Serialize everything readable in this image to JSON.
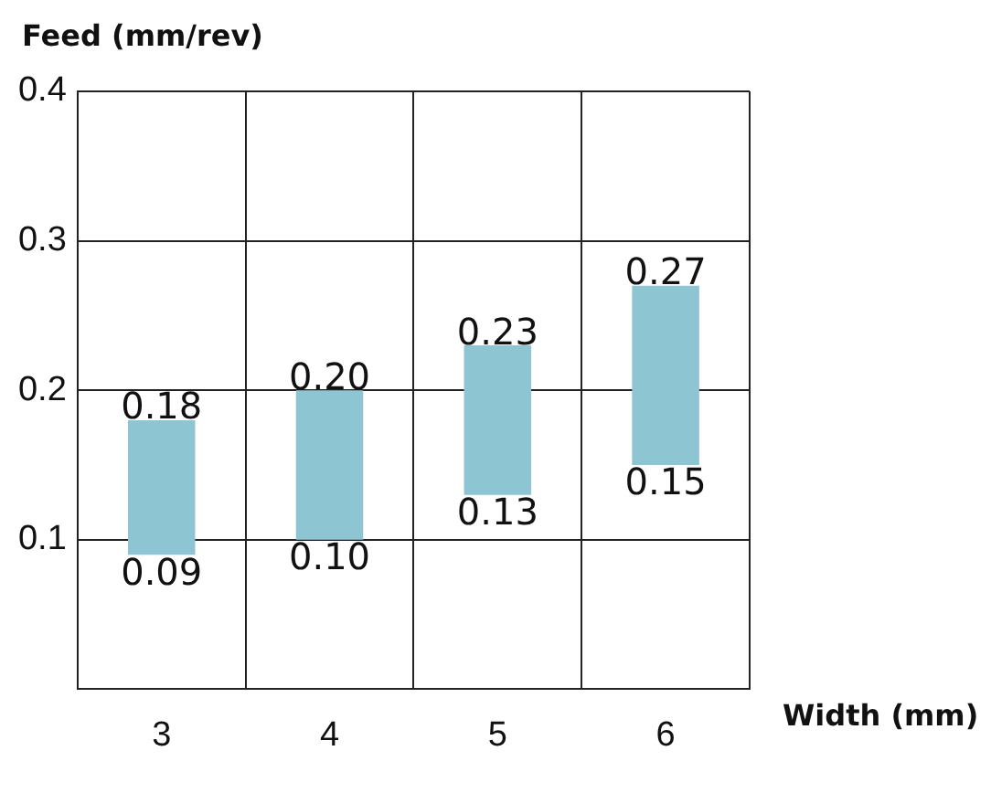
{
  "chart_data": {
    "type": "bar",
    "ylabel": "Feed (mm/rev)",
    "xlabel": "Width (mm)",
    "categories": [
      "3",
      "4",
      "5",
      "6"
    ],
    "base": [
      0.09,
      0.1,
      0.13,
      0.15
    ],
    "values": [
      0.09,
      0.1,
      0.1,
      0.12
    ],
    "color": "#8ec5d2",
    "ylim": [
      0,
      0.4
    ],
    "yticks": [
      {
        "value": 0,
        "label": null
      },
      0.1,
      0.2,
      0.3,
      0.4
    ],
    "grid": true,
    "annotations": [
      {
        "text": "0.09",
        "x": "3",
        "y": 0.09
      },
      {
        "text": "0.18",
        "x": "3",
        "y": 0.18
      },
      {
        "text": "0.10",
        "x": "4",
        "y": 0.1
      },
      {
        "text": "0.20",
        "x": "4",
        "y": 0.2
      },
      {
        "text": "0.13",
        "x": "5",
        "y": 0.13
      },
      {
        "text": "0.23",
        "x": "5",
        "y": 0.23
      },
      {
        "text": "0.15",
        "x": "6",
        "y": 0.15
      },
      {
        "text": "0.27",
        "x": "6",
        "y": 0.27
      }
    ]
  }
}
